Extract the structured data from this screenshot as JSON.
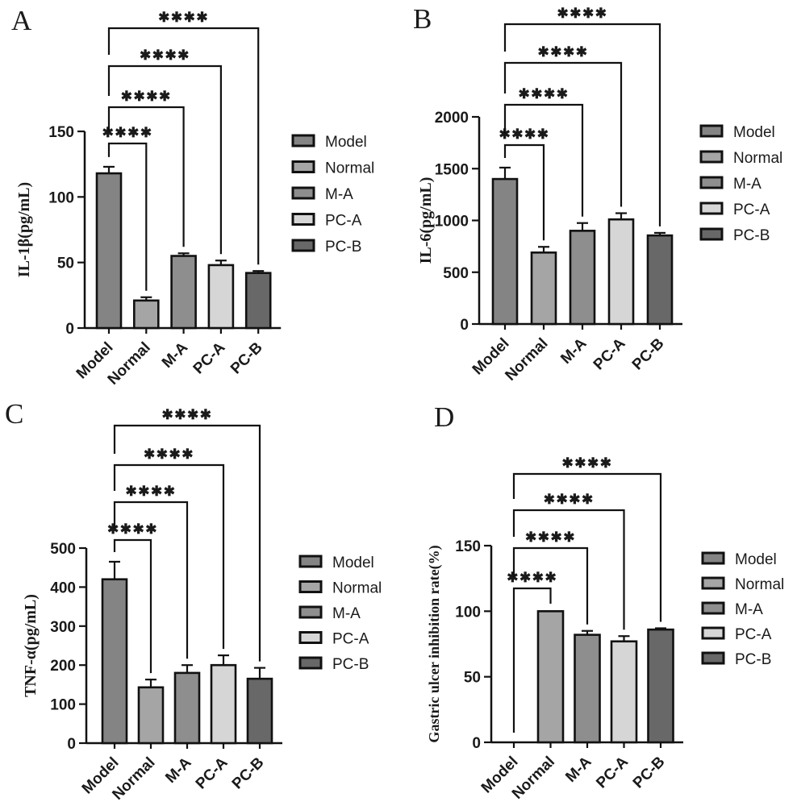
{
  "figure": {
    "panels": [
      "A",
      "B",
      "C",
      "D"
    ],
    "background": "#ffffff"
  },
  "colors": {
    "axis": "#111111",
    "text": "#1a1a1a",
    "background": "#ffffff",
    "groups": [
      "#848484",
      "#a5a5a5",
      "#8e8e8e",
      "#d6d6d6",
      "#686868"
    ]
  },
  "chart_data": [
    {
      "panel": "A",
      "type": "bar",
      "ylabel": "IL-1β(pg/mL)",
      "xlabel": "",
      "categories": [
        "Model",
        "Normal",
        "M-A",
        "PC-A",
        "PC-B"
      ],
      "values": [
        118,
        21,
        55,
        48,
        42
      ],
      "errors": [
        5,
        2.5,
        2,
        3.5,
        1.5
      ],
      "ylim": [
        0,
        150
      ],
      "yticks": [
        0,
        50,
        100,
        150
      ],
      "grid": false,
      "legend": [
        "Model",
        "Normal",
        "M-A",
        "PC-A",
        "PC-B"
      ],
      "legend_position": "right",
      "significance": [
        {
          "from": "Model",
          "to": "Normal",
          "label": "****"
        },
        {
          "from": "Model",
          "to": "M-A",
          "label": "****"
        },
        {
          "from": "Model",
          "to": "PC-A",
          "label": "****"
        },
        {
          "from": "Model",
          "to": "PC-B",
          "label": "****"
        }
      ]
    },
    {
      "panel": "B",
      "type": "bar",
      "ylabel": "IL-6(pg/mL)",
      "xlabel": "",
      "categories": [
        "Model",
        "Normal",
        "M-A",
        "PC-A",
        "PC-B"
      ],
      "values": [
        1400,
        690,
        900,
        1010,
        855
      ],
      "errors": [
        110,
        55,
        75,
        60,
        25
      ],
      "ylim": [
        0,
        2000
      ],
      "yticks": [
        0,
        500,
        1000,
        1500,
        2000
      ],
      "grid": false,
      "legend": [
        "Model",
        "Normal",
        "M-A",
        "PC-A",
        "PC-B"
      ],
      "legend_position": "right",
      "significance": [
        {
          "from": "Model",
          "to": "Normal",
          "label": "****"
        },
        {
          "from": "Model",
          "to": "M-A",
          "label": "****"
        },
        {
          "from": "Model",
          "to": "PC-A",
          "label": "****"
        },
        {
          "from": "Model",
          "to": "PC-B",
          "label": "****"
        }
      ]
    },
    {
      "panel": "C",
      "type": "bar",
      "ylabel": "TNF-α(pg/mL)",
      "xlabel": "",
      "categories": [
        "Model",
        "Normal",
        "M-A",
        "PC-A",
        "PC-B"
      ],
      "values": [
        420,
        143,
        180,
        200,
        165
      ],
      "errors": [
        45,
        20,
        20,
        25,
        28
      ],
      "ylim": [
        0,
        500
      ],
      "yticks": [
        0,
        100,
        200,
        300,
        400,
        500
      ],
      "grid": false,
      "legend": [
        "Model",
        "Normal",
        "M-A",
        "PC-A",
        "PC-B"
      ],
      "legend_position": "right",
      "significance": [
        {
          "from": "Model",
          "to": "Normal",
          "label": "****"
        },
        {
          "from": "Model",
          "to": "M-A",
          "label": "****"
        },
        {
          "from": "Model",
          "to": "PC-A",
          "label": "****"
        },
        {
          "from": "Model",
          "to": "PC-B",
          "label": "****"
        }
      ]
    },
    {
      "panel": "D",
      "type": "bar",
      "ylabel": "Gastric ulcer inhibition rate(%)",
      "xlabel": "",
      "categories": [
        "Model",
        "Normal",
        "M-A",
        "PC-A",
        "PC-B"
      ],
      "values": [
        0,
        100,
        82,
        77,
        86
      ],
      "errors": [
        0,
        0.8,
        3,
        4,
        1
      ],
      "ylim": [
        0,
        150
      ],
      "yticks": [
        0,
        50,
        100,
        150
      ],
      "grid": false,
      "legend": [
        "Model",
        "Normal",
        "M-A",
        "PC-A",
        "PC-B"
      ],
      "legend_position": "right",
      "significance": [
        {
          "from": "Model",
          "to": "Normal",
          "label": "****"
        },
        {
          "from": "Model",
          "to": "M-A",
          "label": "****"
        },
        {
          "from": "Model",
          "to": "PC-A",
          "label": "****"
        },
        {
          "from": "Model",
          "to": "PC-B",
          "label": "****"
        }
      ]
    }
  ]
}
